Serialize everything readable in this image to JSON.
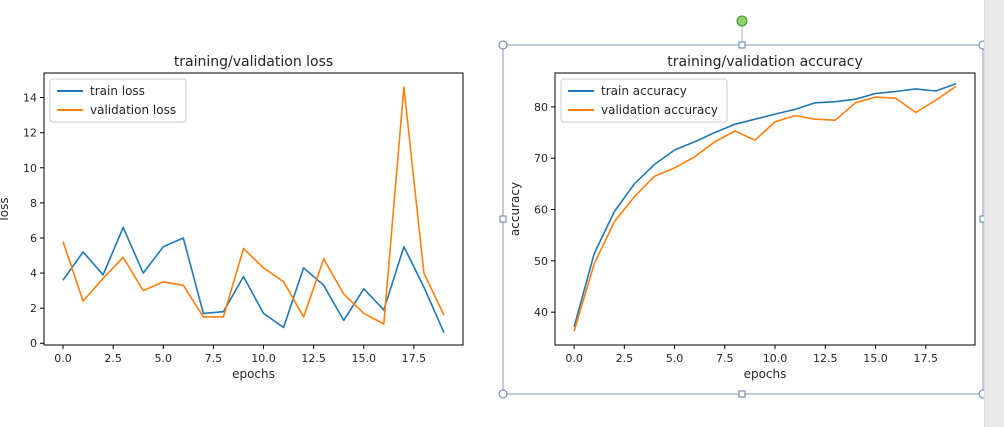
{
  "chart_data": [
    {
      "type": "line",
      "title": "training/validation loss",
      "xlabel": "epochs",
      "ylabel": "loss",
      "xlim": [
        -0.95,
        19.95
      ],
      "ylim": [
        -0.1,
        15.4
      ],
      "xticks": [
        0,
        2.5,
        5,
        7.5,
        10,
        12.5,
        15,
        17.5
      ],
      "xtick_labels": [
        "0.0",
        "2.5",
        "5.0",
        "7.5",
        "10.0",
        "12.5",
        "15.0",
        "17.5"
      ],
      "yticks": [
        0,
        2,
        4,
        6,
        8,
        10,
        12,
        14
      ],
      "ytick_labels": [
        "0",
        "2",
        "4",
        "6",
        "8",
        "10",
        "12",
        "14"
      ],
      "grid": false,
      "legend_position": "top-left",
      "x": [
        0,
        1,
        2,
        3,
        4,
        5,
        6,
        7,
        8,
        9,
        10,
        11,
        12,
        13,
        14,
        15,
        16,
        17,
        18,
        19
      ],
      "series": [
        {
          "name": "train loss",
          "color": "#1f77b4",
          "values": [
            3.6,
            5.2,
            3.9,
            6.6,
            4.0,
            5.5,
            6.0,
            1.7,
            1.8,
            3.8,
            1.7,
            0.9,
            4.3,
            3.3,
            1.3,
            3.1,
            1.9,
            5.5,
            3.2,
            0.6
          ]
        },
        {
          "name": "validation loss",
          "color": "#ff7f0e",
          "values": [
            5.8,
            2.4,
            3.7,
            4.9,
            3.0,
            3.5,
            3.3,
            1.5,
            1.5,
            5.4,
            4.3,
            3.5,
            1.5,
            4.8,
            2.8,
            1.7,
            1.1,
            14.6,
            4.0,
            1.6
          ]
        }
      ]
    },
    {
      "type": "line",
      "title": "training/validation accuracy",
      "xlabel": "epochs",
      "ylabel": "accuracy",
      "xlim": [
        -0.95,
        19.95
      ],
      "ylim": [
        33.6,
        86.6
      ],
      "xticks": [
        0,
        2.5,
        5,
        7.5,
        10,
        12.5,
        15,
        17.5
      ],
      "xtick_labels": [
        "0.0",
        "2.5",
        "5.0",
        "7.5",
        "10.0",
        "12.5",
        "15.0",
        "17.5"
      ],
      "yticks": [
        40,
        50,
        60,
        70,
        80
      ],
      "ytick_labels": [
        "40",
        "50",
        "60",
        "70",
        "80"
      ],
      "grid": false,
      "legend_position": "top-left",
      "x": [
        0,
        1,
        2,
        3,
        4,
        5,
        6,
        7,
        8,
        9,
        10,
        11,
        12,
        13,
        14,
        15,
        16,
        17,
        18,
        19
      ],
      "series": [
        {
          "name": "train accuracy",
          "color": "#1f77b4",
          "values": [
            37.1,
            51.4,
            59.6,
            65.0,
            68.8,
            71.6,
            73.2,
            75.0,
            76.6,
            77.6,
            78.6,
            79.5,
            80.8,
            81.0,
            81.5,
            82.6,
            83.0,
            83.5,
            83.1,
            84.5
          ]
        },
        {
          "name": "validation accuracy",
          "color": "#ff7f0e",
          "values": [
            36.3,
            49.4,
            57.6,
            62.5,
            66.5,
            68.1,
            70.3,
            73.2,
            75.3,
            73.5,
            77.1,
            78.3,
            77.6,
            77.4,
            80.8,
            81.9,
            81.7,
            78.9,
            81.3,
            84.0
          ]
        }
      ]
    }
  ]
}
